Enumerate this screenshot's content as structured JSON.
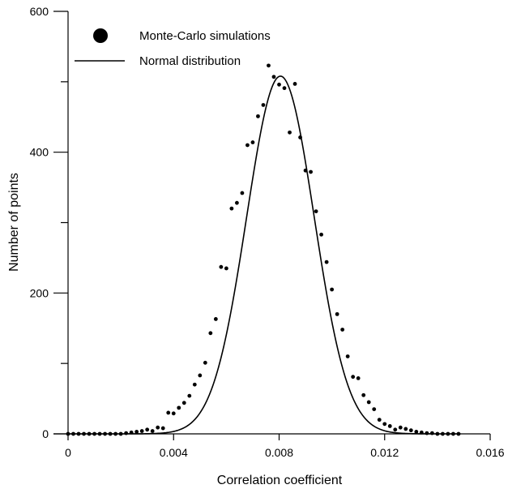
{
  "chart_data": {
    "type": "scatter",
    "title": "",
    "xlabel": "Correlation coefficient",
    "ylabel": "Number of points",
    "xlim": [
      0,
      0.016
    ],
    "ylim": [
      0,
      600
    ],
    "x_ticks": [
      0,
      0.004,
      0.008,
      0.012,
      0.016
    ],
    "x_tick_labels": [
      "0",
      "0.004",
      "0.008",
      "0.012",
      "0.016"
    ],
    "y_ticks": [
      0,
      200,
      400,
      600
    ],
    "y_tick_labels": [
      "0",
      "200",
      "400",
      "600"
    ],
    "y_minor_ticks": [
      100,
      300,
      500
    ],
    "grid": false,
    "legend_position": "top-left",
    "series": [
      {
        "name": "Monte-Carlo simulations",
        "kind": "points",
        "color": "#000000",
        "x": [
          0,
          0.0002,
          0.0004,
          0.0006,
          0.0008,
          0.001,
          0.0012,
          0.0014,
          0.0016,
          0.0018,
          0.002,
          0.0022,
          0.0024,
          0.0026,
          0.0028,
          0.003,
          0.0032,
          0.0034,
          0.0036,
          0.0038,
          0.004,
          0.0042,
          0.0044,
          0.0046,
          0.0048,
          0.005,
          0.0052,
          0.0054,
          0.0056,
          0.0058,
          0.006,
          0.0062,
          0.0064,
          0.0066,
          0.0068,
          0.007,
          0.0072,
          0.0074,
          0.0076,
          0.0078,
          0.008,
          0.0082,
          0.0084,
          0.0086,
          0.0088,
          0.009,
          0.0092,
          0.0094,
          0.0096,
          0.0098,
          0.01,
          0.0102,
          0.0104,
          0.0106,
          0.0108,
          0.011,
          0.0112,
          0.0114,
          0.0116,
          0.0118,
          0.012,
          0.0122,
          0.0124,
          0.0126,
          0.0128,
          0.013,
          0.0132,
          0.0134,
          0.0136,
          0.0138,
          0.014,
          0.0142,
          0.0144,
          0.0146,
          0.0148
        ],
        "y": [
          0,
          0,
          0,
          0,
          0,
          0,
          0,
          0,
          0,
          0,
          0,
          1,
          2,
          3,
          4,
          6,
          4,
          9,
          8,
          30,
          29,
          37,
          44,
          54,
          70,
          83,
          101,
          143,
          163,
          237,
          235,
          320,
          328,
          342,
          410,
          414,
          451,
          467,
          523,
          507,
          496,
          491,
          428,
          497,
          421,
          374,
          372,
          316,
          283,
          244,
          205,
          170,
          148,
          110,
          81,
          79,
          55,
          45,
          35,
          20,
          14,
          11,
          6,
          9,
          7,
          5,
          3,
          2,
          1,
          1,
          0,
          0,
          0,
          0,
          0
        ]
      },
      {
        "name": "Normal distribution",
        "kind": "curve",
        "color": "#000000",
        "mean": 0.00805,
        "std": 0.00128,
        "peak": 508
      }
    ]
  }
}
